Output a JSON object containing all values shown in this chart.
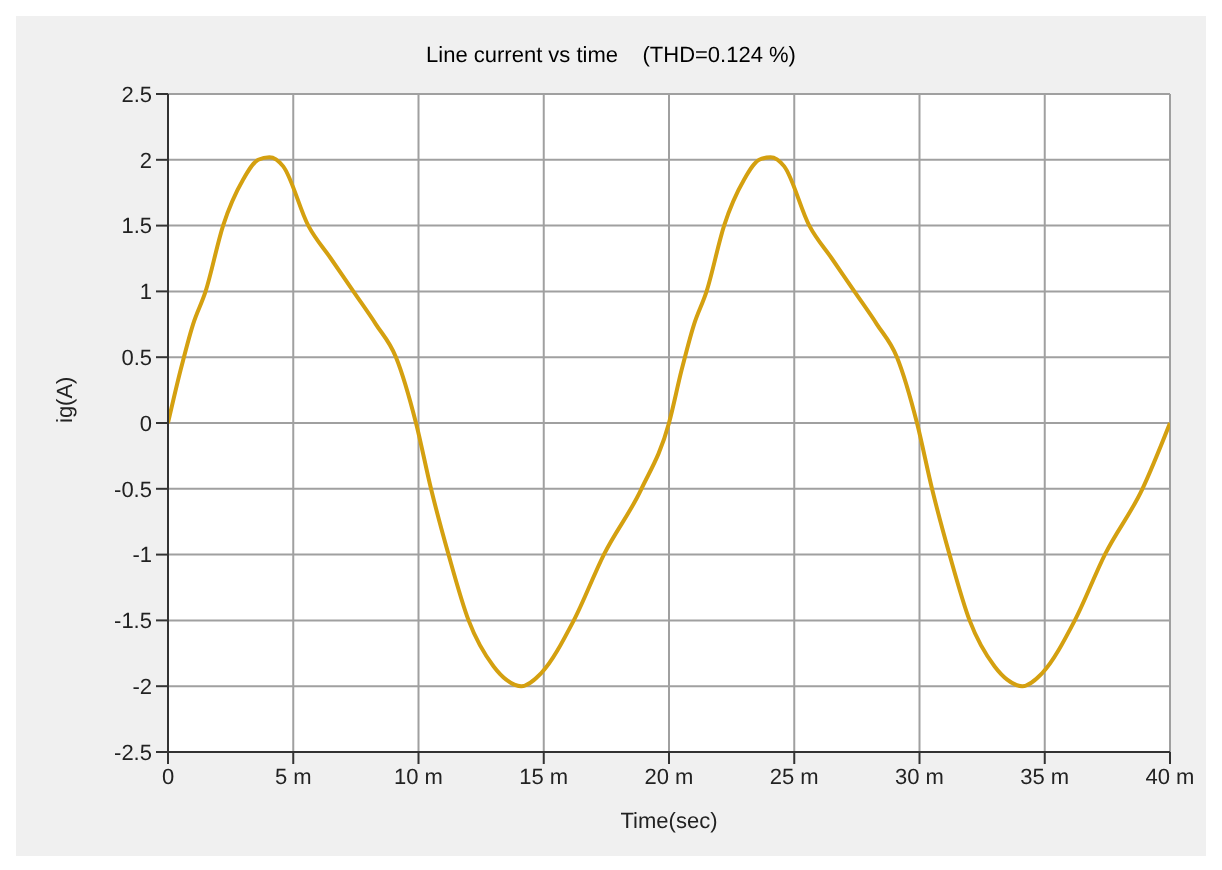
{
  "chart_data": {
    "type": "line",
    "title": "Line current vs time    (THD=0.124 %)",
    "xlabel": "Time(sec)",
    "ylabel": "ig(A)",
    "x": [
      0,
      0.5,
      1,
      1.5,
      2.2,
      3,
      3.6,
      4.05,
      4.6,
      5.6,
      6.5,
      7.4,
      8.3,
      9.1,
      9.9,
      10.5,
      11.2,
      12,
      13,
      13.5,
      14.1,
      14.9,
      16.2,
      17.4,
      18.9,
      20,
      20.5,
      21,
      21.5,
      22.2,
      23,
      23.6,
      24.05,
      24.6,
      25.6,
      26.5,
      27.4,
      28.3,
      29.1,
      29.9,
      30.5,
      31.2,
      32,
      33,
      33.5,
      34.1,
      34.9,
      36.2,
      37.4,
      38.9,
      40
    ],
    "series": [
      {
        "color": "#d4a010",
        "values": [
          0,
          0.4,
          0.75,
          1.0,
          1.5,
          1.85,
          2.0,
          2.02,
          1.95,
          1.5,
          1.25,
          1.0,
          0.75,
          0.5,
          0,
          -0.5,
          -1.0,
          -1.5,
          -1.85,
          -1.95,
          -2.0,
          -1.9,
          -1.5,
          -1.0,
          -0.5,
          0,
          0.4,
          0.75,
          1.0,
          1.5,
          1.85,
          2.0,
          2.02,
          1.95,
          1.5,
          1.25,
          1.0,
          0.75,
          0.5,
          0,
          -0.5,
          -1.0,
          -1.5,
          -1.85,
          -1.95,
          -2.0,
          -1.9,
          -1.5,
          -1.0,
          -0.5,
          0
        ]
      }
    ],
    "xlim": [
      0,
      40
    ],
    "xticks": [
      0,
      {
        "value": 5,
        "label": "5 m"
      },
      {
        "value": 10,
        "label": "10 m"
      },
      {
        "value": 15,
        "label": "15 m"
      },
      {
        "value": 20,
        "label": "20 m"
      },
      {
        "value": 25,
        "label": "25 m"
      },
      {
        "value": 30,
        "label": "30 m"
      },
      {
        "value": 35,
        "label": "35 m"
      },
      {
        "value": 40,
        "label": "40 m"
      }
    ],
    "ylim": [
      -2.5,
      2.5
    ],
    "yticks": [
      -2.5,
      -2,
      -1.5,
      -1,
      -0.5,
      0,
      0.5,
      1,
      1.5,
      2,
      2.5
    ],
    "grid": true,
    "legend": false,
    "marker": "none",
    "line_style": "solid"
  }
}
